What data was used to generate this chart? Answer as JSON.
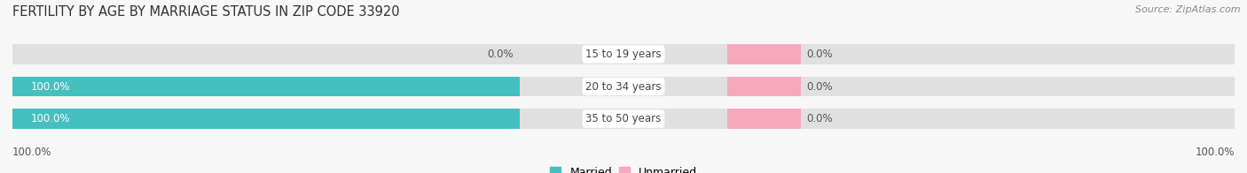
{
  "title": "FERTILITY BY AGE BY MARRIAGE STATUS IN ZIP CODE 33920",
  "source": "Source: ZipAtlas.com",
  "categories": [
    "15 to 19 years",
    "20 to 34 years",
    "35 to 50 years"
  ],
  "married_values": [
    0.0,
    100.0,
    100.0
  ],
  "unmarried_values": [
    0.0,
    0.0,
    0.0
  ],
  "married_color": "#45bfc0",
  "unmarried_color": "#f7a8bb",
  "bar_bg_color": "#e0e0e0",
  "title_fontsize": 10.5,
  "label_fontsize": 8.5,
  "value_fontsize": 8.5,
  "tick_fontsize": 8.5,
  "source_fontsize": 8,
  "legend_fontsize": 9,
  "background_color": "#f7f7f7",
  "left_axis_label": "100.0%",
  "right_axis_label": "100.0%",
  "figwidth": 14.06,
  "figheight": 1.96
}
